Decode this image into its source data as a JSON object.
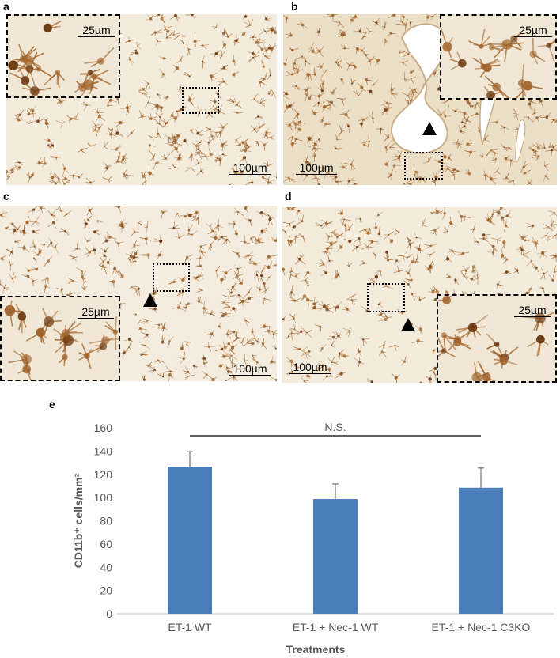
{
  "panels": {
    "a": {
      "label": "a",
      "scale_main": "100µm",
      "scale_inset": "25µm"
    },
    "b": {
      "label": "b",
      "scale_main": "100µm",
      "scale_inset": "25µm"
    },
    "c": {
      "label": "c",
      "scale_main": "100µm",
      "scale_inset": "25µm"
    },
    "d": {
      "label": "d",
      "scale_main": "100µm",
      "scale_inset": "25µm"
    }
  },
  "colors": {
    "bar": "#4a7ebb",
    "tissue_bg": "#f2e9d8",
    "stain": "#a0642a"
  },
  "chart_data": {
    "type": "bar",
    "panel_label": "e",
    "categories": [
      "ET-1 WT",
      "ET-1 + Nec-1 WT",
      "ET-1 + Nec-1 C3KO"
    ],
    "values": [
      126.5,
      98.7,
      108.4
    ],
    "errors": [
      13,
      13,
      17
    ],
    "xlabel": "Treatments",
    "ylabel": "CD11b⁺ cells/mm²",
    "ylim": [
      0,
      160
    ],
    "yticks": [
      0,
      20,
      40,
      60,
      80,
      100,
      120,
      140,
      160
    ],
    "grid": false,
    "annotation": "N.S."
  }
}
